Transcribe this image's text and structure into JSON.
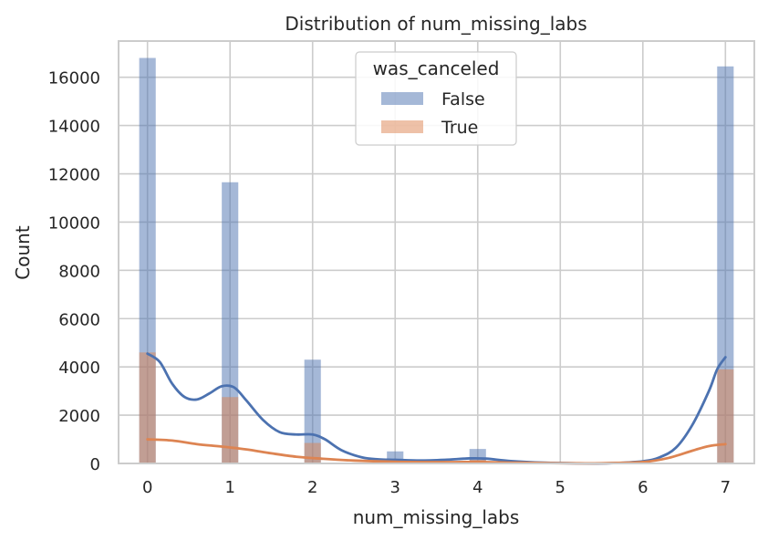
{
  "chart_data": {
    "type": "histogram",
    "title": "Distribution of num_missing_labs",
    "xlabel": "num_missing_labs",
    "ylabel": "Count",
    "xlim": [
      -0.35,
      7.35
    ],
    "ylim": [
      0,
      17500
    ],
    "x_ticks": [
      0,
      1,
      2,
      3,
      4,
      5,
      6,
      7
    ],
    "y_ticks": [
      0,
      2000,
      4000,
      6000,
      8000,
      10000,
      12000,
      14000,
      16000
    ],
    "grid": true,
    "legend": {
      "title": "was_canceled",
      "position": "top-center"
    },
    "bin_width": 0.2,
    "series": [
      {
        "name": "False",
        "color": "#4c72b0",
        "bars": [
          {
            "x": 0,
            "value": 16800
          },
          {
            "x": 1,
            "value": 11650
          },
          {
            "x": 2,
            "value": 4300
          },
          {
            "x": 3,
            "value": 500
          },
          {
            "x": 4,
            "value": 600
          },
          {
            "x": 7,
            "value": 16450
          }
        ],
        "kde": [
          [
            0,
            4550
          ],
          [
            0.15,
            4200
          ],
          [
            0.3,
            3300
          ],
          [
            0.45,
            2750
          ],
          [
            0.6,
            2650
          ],
          [
            0.75,
            2900
          ],
          [
            0.9,
            3200
          ],
          [
            1.05,
            3150
          ],
          [
            1.2,
            2600
          ],
          [
            1.4,
            1800
          ],
          [
            1.6,
            1300
          ],
          [
            1.8,
            1200
          ],
          [
            2.0,
            1200
          ],
          [
            2.15,
            1000
          ],
          [
            2.35,
            550
          ],
          [
            2.6,
            250
          ],
          [
            2.8,
            170
          ],
          [
            3.0,
            150
          ],
          [
            3.3,
            120
          ],
          [
            3.6,
            150
          ],
          [
            3.9,
            210
          ],
          [
            4.1,
            200
          ],
          [
            4.4,
            100
          ],
          [
            4.8,
            30
          ],
          [
            5.2,
            5
          ],
          [
            5.6,
            10
          ],
          [
            6.0,
            90
          ],
          [
            6.2,
            250
          ],
          [
            6.4,
            650
          ],
          [
            6.6,
            1600
          ],
          [
            6.8,
            3000
          ],
          [
            6.9,
            3900
          ],
          [
            7.0,
            4400
          ]
        ]
      },
      {
        "name": "True",
        "color": "#dd8452",
        "bars": [
          {
            "x": 0,
            "value": 4600
          },
          {
            "x": 1,
            "value": 2750
          },
          {
            "x": 2,
            "value": 850
          },
          {
            "x": 3,
            "value": 100
          },
          {
            "x": 4,
            "value": 150
          },
          {
            "x": 7,
            "value": 3900
          }
        ],
        "kde": [
          [
            0,
            1000
          ],
          [
            0.3,
            950
          ],
          [
            0.6,
            800
          ],
          [
            0.9,
            700
          ],
          [
            1.2,
            580
          ],
          [
            1.5,
            420
          ],
          [
            1.8,
            280
          ],
          [
            2.1,
            200
          ],
          [
            2.5,
            120
          ],
          [
            3.0,
            70
          ],
          [
            3.5,
            55
          ],
          [
            4.0,
            60
          ],
          [
            4.5,
            30
          ],
          [
            5.0,
            10
          ],
          [
            5.5,
            10
          ],
          [
            6.0,
            60
          ],
          [
            6.3,
            220
          ],
          [
            6.6,
            530
          ],
          [
            6.8,
            720
          ],
          [
            7.0,
            800
          ]
        ]
      }
    ]
  }
}
